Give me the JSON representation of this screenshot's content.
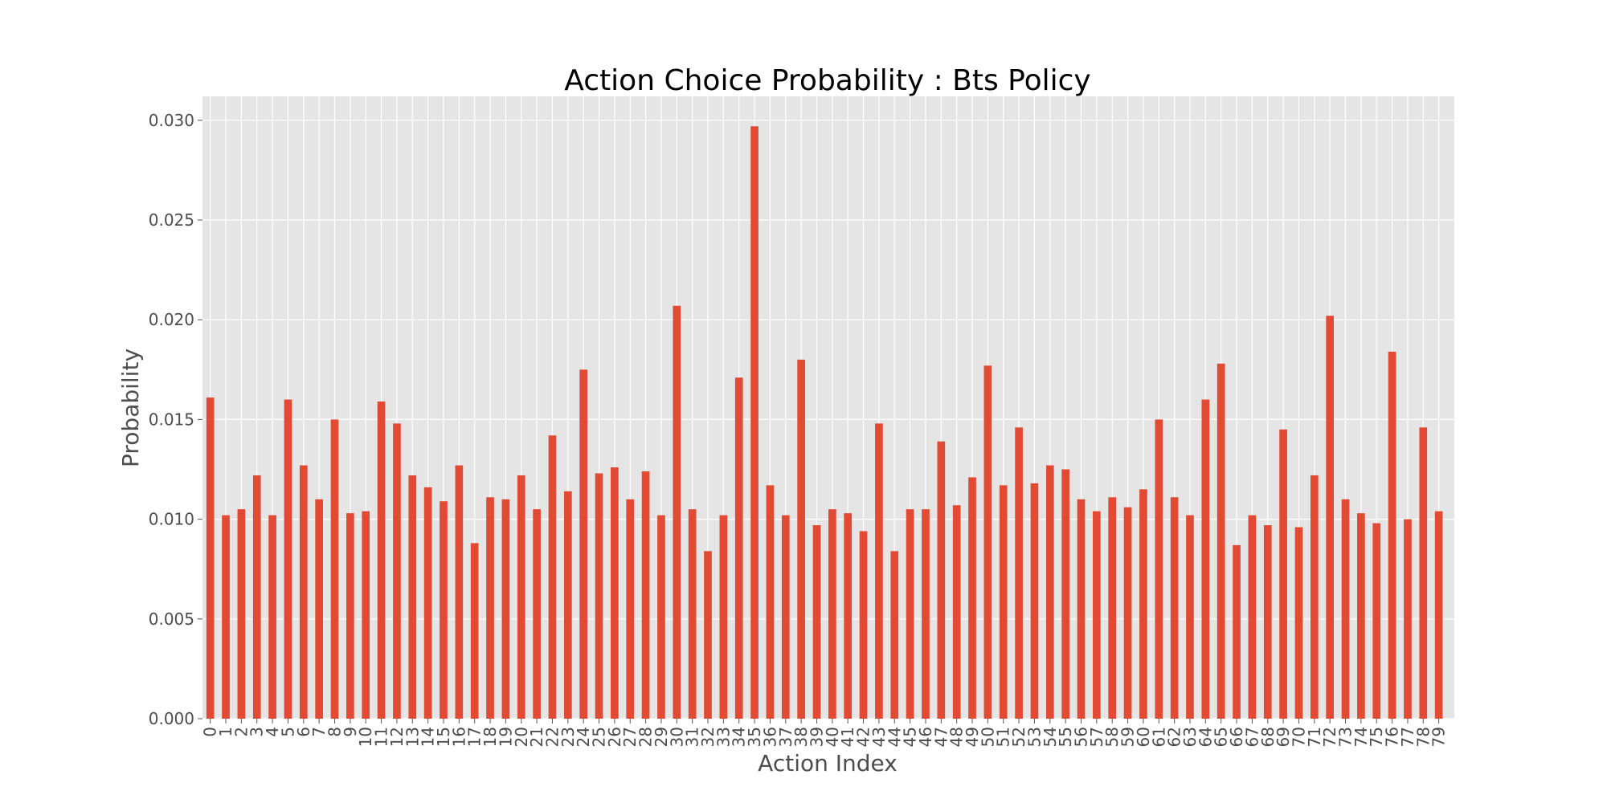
{
  "chart_data": {
    "type": "bar",
    "title": "Action Choice Probability : Bts Policy",
    "xlabel": "Action Index",
    "ylabel": "Probability",
    "ylim": [
      0,
      0.0312
    ],
    "yticks": [
      "0.000",
      "0.005",
      "0.010",
      "0.015",
      "0.020",
      "0.025",
      "0.030"
    ],
    "grid": true,
    "legend": "none",
    "colors": {
      "bar": "#E24A33",
      "plot_background": "#E5E5E5",
      "grid": "#FFFFFF"
    },
    "categories": [
      "0",
      "1",
      "2",
      "3",
      "4",
      "5",
      "6",
      "7",
      "8",
      "9",
      "10",
      "11",
      "12",
      "13",
      "14",
      "15",
      "16",
      "17",
      "18",
      "19",
      "20",
      "21",
      "22",
      "23",
      "24",
      "25",
      "26",
      "27",
      "28",
      "29",
      "30",
      "31",
      "32",
      "33",
      "34",
      "35",
      "36",
      "37",
      "38",
      "39",
      "40",
      "41",
      "42",
      "43",
      "44",
      "45",
      "46",
      "47",
      "48",
      "49",
      "50",
      "51",
      "52",
      "53",
      "54",
      "55",
      "56",
      "57",
      "58",
      "59",
      "60",
      "61",
      "62",
      "63",
      "64",
      "65",
      "66",
      "67",
      "68",
      "69",
      "70",
      "71",
      "72",
      "73",
      "74",
      "75",
      "76",
      "77",
      "78",
      "79"
    ],
    "values": [
      0.0161,
      0.0102,
      0.0105,
      0.0122,
      0.0102,
      0.016,
      0.0127,
      0.011,
      0.015,
      0.0103,
      0.0104,
      0.0159,
      0.0148,
      0.0122,
      0.0116,
      0.0109,
      0.0127,
      0.0088,
      0.0111,
      0.011,
      0.0122,
      0.0105,
      0.0142,
      0.0114,
      0.0175,
      0.0123,
      0.0126,
      0.011,
      0.0124,
      0.0102,
      0.0207,
      0.0105,
      0.0084,
      0.0102,
      0.0171,
      0.0297,
      0.0117,
      0.0102,
      0.018,
      0.0097,
      0.0105,
      0.0103,
      0.0094,
      0.0148,
      0.0084,
      0.0105,
      0.0105,
      0.0139,
      0.0107,
      0.0121,
      0.0177,
      0.0117,
      0.0146,
      0.0118,
      0.0127,
      0.0125,
      0.011,
      0.0104,
      0.0111,
      0.0106,
      0.0115,
      0.015,
      0.0111,
      0.0102,
      0.016,
      0.0178,
      0.0087,
      0.0102,
      0.0097,
      0.0145,
      0.0096,
      0.0122,
      0.0202,
      0.011,
      0.0103,
      0.0098,
      0.0184,
      0.01,
      0.0146,
      0.0104
    ]
  }
}
